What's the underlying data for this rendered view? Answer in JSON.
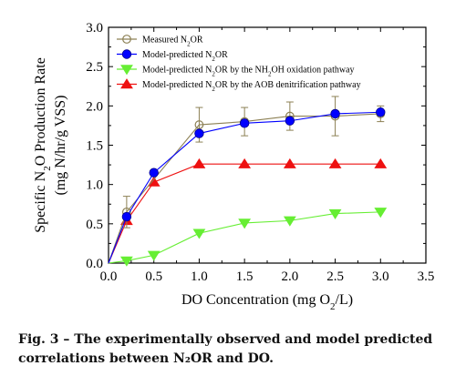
{
  "chart_data": {
    "type": "line",
    "ylabel_html": "Specific N<tspan baseline-shift='sub' font-size='11'>2</tspan>O Production Rate",
    "ylabel_units": "(mg N/hr/g VSS)",
    "xlabel_html": "DO Concentration (mg O<tspan baseline-shift='sub' font-size='11'>2</tspan>/L)",
    "xlim": [
      0,
      3.5
    ],
    "ylim": [
      0,
      3.0
    ],
    "xticks": [
      "0.0",
      "0.5",
      "1.0",
      "1.5",
      "2.0",
      "2.5",
      "3.0",
      "3.5"
    ],
    "yticks": [
      "0.0",
      "0.5",
      "1.0",
      "1.5",
      "2.0",
      "2.5",
      "3.0"
    ],
    "legend_position": "top-left",
    "series": [
      {
        "name_html": "Measured N<tspan baseline-shift='sub' font-size='7'>2</tspan>OR",
        "marker": "circle-open",
        "color": "#8c8054",
        "x": [
          0,
          0.2,
          1.0,
          1.5,
          2.0,
          2.5,
          3.0
        ],
        "y": [
          0,
          0.65,
          1.76,
          1.8,
          1.87,
          1.87,
          1.9
        ],
        "yerr": [
          0,
          0.2,
          0.22,
          0.18,
          0.18,
          0.25,
          0.1
        ]
      },
      {
        "name_html": "Model-predicted N<tspan baseline-shift='sub' font-size='7'>2</tspan>OR",
        "marker": "circle-filled",
        "color": "#0000ff",
        "x": [
          0,
          0.2,
          0.5,
          1.0,
          1.5,
          2.0,
          2.5,
          3.0
        ],
        "y": [
          0,
          0.59,
          1.15,
          1.65,
          1.78,
          1.81,
          1.9,
          1.92
        ]
      },
      {
        "name_html": "Model-predicted N<tspan baseline-shift='sub' font-size='7'>2</tspan>OR by the NH<tspan baseline-shift='sub' font-size='7'>2</tspan>OH oxidation pathway",
        "marker": "triangle-down",
        "color": "#66ee33",
        "x": [
          0,
          0.2,
          0.5,
          1.0,
          1.5,
          2.0,
          2.5,
          3.0
        ],
        "y": [
          0,
          0.03,
          0.1,
          0.38,
          0.51,
          0.54,
          0.63,
          0.65
        ]
      },
      {
        "name_html": "Model-predicted N<tspan baseline-shift='sub' font-size='7'>2</tspan>OR by the AOB denitrification pathway",
        "marker": "triangle-up",
        "color": "#ee1111",
        "x": [
          0,
          0.2,
          0.5,
          1.0,
          1.5,
          2.0,
          2.5,
          3.0
        ],
        "y": [
          0,
          0.54,
          1.03,
          1.26,
          1.26,
          1.26,
          1.26,
          1.26
        ]
      }
    ]
  },
  "caption": {
    "prefix": "Fig. 3",
    "dash": "–",
    "text": "The experimentally observed and model predicted correlations between N₂OR and DO."
  }
}
